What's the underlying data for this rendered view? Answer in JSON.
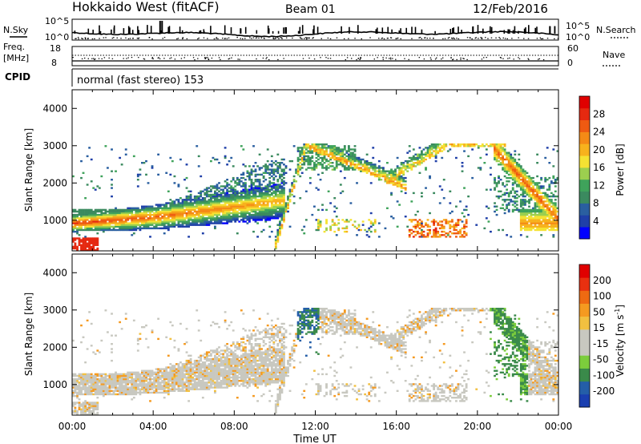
{
  "header": {
    "title": "Hokkaido West (fitACF)",
    "beam": "Beam 01",
    "date": "12/Feb/2016"
  },
  "top_panels": {
    "nsky_label": "N.Sky",
    "nsearch_label": "N.Search",
    "nsky_ticks": [
      "10^5",
      "10^0"
    ],
    "nsky_right_ticks": [
      "10^5",
      "10^0"
    ],
    "freq_label_1": "Freq.",
    "freq_label_2": "[MHz]",
    "freq_ticks": [
      "18",
      "8"
    ],
    "nave_label": "Nave",
    "nave_ticks": [
      "60",
      "0"
    ],
    "cpid_label": "CPID",
    "cpid_text": "normal (fast stereo) 153"
  },
  "chart_data": [
    {
      "type": "heatmap",
      "name": "power",
      "ylabel": "Slant Range [km]",
      "yticks": [
        "1000",
        "2000",
        "3000",
        "4000"
      ],
      "ylim": [
        180,
        4500
      ],
      "xticks": [
        "00:00",
        "04:00",
        "08:00",
        "12:00",
        "16:00",
        "20:00",
        "00:00"
      ],
      "xlim_hours": [
        0,
        24
      ],
      "colorbar_label": "Power [dB]",
      "colorbar_ticks": [
        "4",
        "8",
        "12",
        "16",
        "20",
        "24",
        "28"
      ],
      "colorbar_colors": [
        "#0000ff",
        "#1f3fa8",
        "#2a5fa0",
        "#3b8a5f",
        "#3fa35b",
        "#9ccf4f",
        "#f5e233",
        "#f7b21d",
        "#f48a16",
        "#ee5a12",
        "#e52910",
        "#e00000"
      ]
    },
    {
      "type": "heatmap",
      "name": "velocity",
      "ylabel": "Slant Range [km]",
      "yticks": [
        "1000",
        "2000",
        "3000",
        "4000"
      ],
      "ylim": [
        180,
        4500
      ],
      "xticks": [
        "00:00",
        "04:00",
        "08:00",
        "12:00",
        "16:00",
        "20:00",
        "00:00"
      ],
      "xlabel": "Time UT",
      "colorbar_label_main": "Velocity [m s",
      "colorbar_label_sup": "-1",
      "colorbar_label_end": "]",
      "colorbar_ticks": [
        "200",
        "100",
        "50",
        "15",
        "-15",
        "-50",
        "-100",
        "-200"
      ],
      "colorbar_colors": [
        "#1a3fb0",
        "#245ea8",
        "#3a8a4a",
        "#7ccd3c",
        "#c8c8c0",
        "#c8c8c0",
        "#f2c040",
        "#f59a20",
        "#ee6a12",
        "#e83010",
        "#e00000"
      ]
    }
  ]
}
